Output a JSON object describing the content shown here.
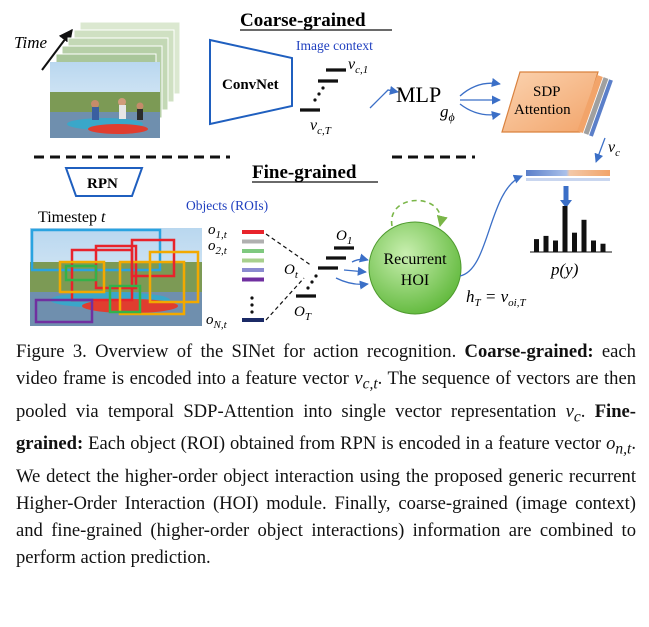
{
  "figure": {
    "coarse_title": "Coarse-grained",
    "fine_title": "Fine-grained",
    "time_label": "Time",
    "convnet_label": "ConvNet",
    "image_context_label": "Image context",
    "vc1_label": "v",
    "vc1_sub": "c,1",
    "vcT_label": "v",
    "vcT_sub": "c,T",
    "mlp_label": "MLP",
    "g_label": "g",
    "g_sub": "ϕ",
    "sdp_line1": "SDP",
    "sdp_line2": "Attention",
    "vc_label": "v",
    "vc_sub": "c",
    "rpn_label": "RPN",
    "timestep_label": "Timestep",
    "timestep_var": "t",
    "objects_label": "Objects (ROIs)",
    "o1t_label": "o",
    "o1t_sub": "1,t",
    "o2t_label": "o",
    "o2t_sub": "2,t",
    "oNt_label": "o",
    "oNt_sub": "N,t",
    "o1_label": "O",
    "o1_sub": "1",
    "ot_label": "O",
    "ot_sub": "t",
    "oT_label": "O",
    "oT_sub": "T",
    "hoi_line1": "Recurrent",
    "hoi_line2": "HOI",
    "hT_eq": "h",
    "hT_sub": "T",
    "hT_rhs": " = v",
    "hT_rhs_sub": "oi,T",
    "py_label": "p(y)",
    "histogram_values": [
      0.28,
      0.35,
      0.25,
      1.0,
      0.42,
      0.7,
      0.25,
      0.18
    ],
    "object_bar_colors": [
      "#e8232b",
      "#b0b0b0",
      "#7fc97f",
      "#a8d08d",
      "#8b8bd0",
      "#7030a0"
    ],
    "colors": {
      "convnet": "#1f5fbf",
      "sdp_fill": "#f7b98a",
      "hoi_fill": "#78c850",
      "arrow": "#3b6fc7",
      "dashed": "#7ab648",
      "box_label": "#1f3fbf"
    }
  },
  "caption": {
    "figure_label": "Figure 3.",
    "intro": "Overview of the SINet for action recognition.",
    "coarse_head": "Coarse-grained:",
    "coarse_text_1": "each video frame is encoded into a feature vector",
    "vct": "v",
    "vct_sub": "c,t",
    "coarse_text_2": ". The sequence of vectors are then pooled via temporal SDP-Attention into single vector representation",
    "vc": "v",
    "vc_sub": "c",
    "fine_head": "Fine-grained:",
    "fine_text_1": "Each object (ROI) obtained from RPN is encoded in a feature vector",
    "ont": "o",
    "ont_sub": "n,t",
    "fine_text_2": ". We detect the higher-order object interaction using the proposed generic recurrent Higher-Order Interaction (HOI) module. Finally, coarse-grained (image context) and fine-grained (higher-order object interactions) information are combined to perform action prediction."
  }
}
